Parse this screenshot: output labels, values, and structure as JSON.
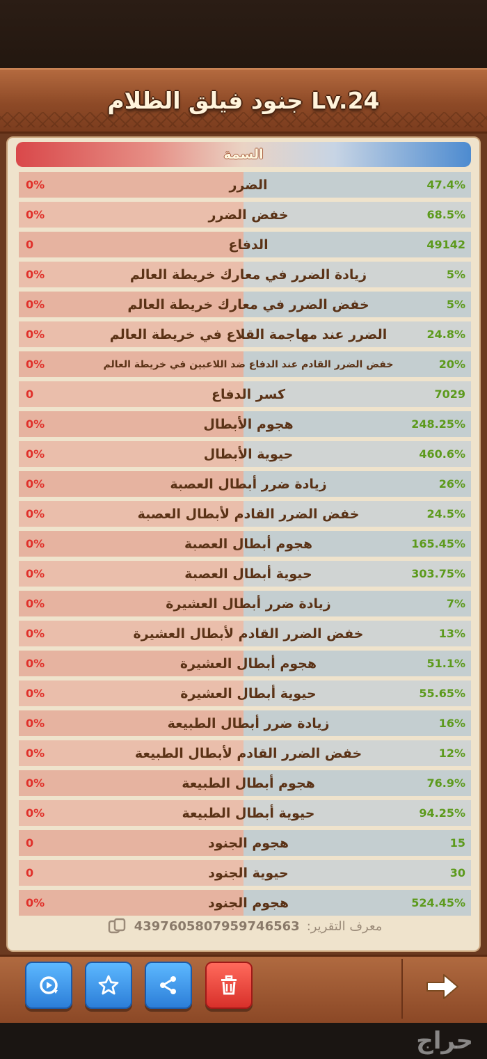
{
  "header": {
    "title": "Lv.24 جنود فيلق الظلام"
  },
  "table": {
    "header_label": "السمة",
    "rows": [
      {
        "label": "الضرر",
        "right": "47.4%",
        "left": "0%"
      },
      {
        "label": "خفض الضرر",
        "right": "68.5%",
        "left": "0%"
      },
      {
        "label": "الدفاع",
        "right": "49142",
        "left": "0"
      },
      {
        "label": "زيادة الضرر في معارك خريطة العالم",
        "right": "5%",
        "left": "0%"
      },
      {
        "label": "خفض الضرر في معارك خريطة العالم",
        "right": "5%",
        "left": "0%"
      },
      {
        "label": "الضرر عند مهاجمة القلاع في خريطة العالم",
        "right": "24.8%",
        "left": "0%"
      },
      {
        "label": "خفض الضرر القادم عند الدفاع ضد اللاعبين في خريطة العالم",
        "right": "20%",
        "left": "0%"
      },
      {
        "label": "كسر الدفاع",
        "right": "7029",
        "left": "0"
      },
      {
        "label": "هجوم الأبطال",
        "right": "248.25%",
        "left": "0%"
      },
      {
        "label": "حيوية الأبطال",
        "right": "460.6%",
        "left": "0%"
      },
      {
        "label": "زيادة ضرر أبطال العصبة",
        "right": "26%",
        "left": "0%"
      },
      {
        "label": "خفض الضرر القادم لأبطال العصبة",
        "right": "24.5%",
        "left": "0%"
      },
      {
        "label": "هجوم أبطال العصبة",
        "right": "165.45%",
        "left": "0%"
      },
      {
        "label": "حيوية أبطال العصبة",
        "right": "303.75%",
        "left": "0%"
      },
      {
        "label": "زيادة ضرر أبطال العشيرة",
        "right": "7%",
        "left": "0%"
      },
      {
        "label": "خفض الضرر القادم لأبطال العشيرة",
        "right": "13%",
        "left": "0%"
      },
      {
        "label": "هجوم أبطال العشيرة",
        "right": "51.1%",
        "left": "0%"
      },
      {
        "label": "حيوية أبطال العشيرة",
        "right": "55.65%",
        "left": "0%"
      },
      {
        "label": "زيادة ضرر أبطال الطبيعة",
        "right": "16%",
        "left": "0%"
      },
      {
        "label": "خفض الضرر القادم لأبطال الطبيعة",
        "right": "12%",
        "left": "0%"
      },
      {
        "label": "هجوم أبطال الطبيعة",
        "right": "76.9%",
        "left": "0%"
      },
      {
        "label": "حيوية أبطال الطبيعة",
        "right": "94.25%",
        "left": "0%"
      },
      {
        "label": "هجوم الجنود",
        "right": "15",
        "left": "0"
      },
      {
        "label": "حيوية الجنود",
        "right": "30",
        "left": "0"
      },
      {
        "label": "هجوم الجنود",
        "right": "524.45%",
        "left": "0%"
      }
    ]
  },
  "report": {
    "label": "معرف التقرير:",
    "id": "4397605807959746563"
  },
  "footer": {
    "watermark": "حراج"
  },
  "colors": {
    "value_right": "#5c9a1c",
    "value_left": "#e0302a",
    "label": "#5a3216"
  },
  "icons": [
    "replay-icon",
    "star-icon",
    "share-icon",
    "trash-icon",
    "arrow-right-icon",
    "copy-icon"
  ]
}
